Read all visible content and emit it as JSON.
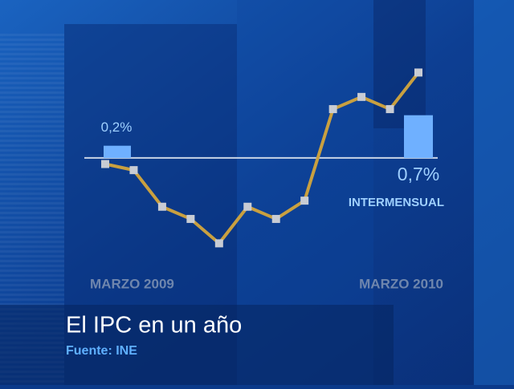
{
  "chart_data": {
    "type": "line",
    "title": "El IPC en un año",
    "source": "Fuente: INE",
    "categories": [
      "MARZO 2009",
      null,
      null,
      null,
      null,
      null,
      null,
      null,
      null,
      null,
      null,
      "MARZO 2010"
    ],
    "ylim": [
      -1.6,
      1.8
    ],
    "series": [
      {
        "type": "line",
        "color": "#c9a040",
        "values": [
          -0.1,
          -0.2,
          -0.8,
          -1.0,
          -1.4,
          -0.8,
          -1.0,
          -0.7,
          0.8,
          1.0,
          0.8,
          1.4
        ]
      },
      {
        "type": "bar",
        "name": "INTERMENSUAL",
        "color": "#6fb0ff",
        "values": [
          0.2,
          null,
          null,
          null,
          null,
          null,
          null,
          null,
          null,
          null,
          null,
          0.7
        ],
        "value_labels": [
          "0,2%",
          null,
          null,
          null,
          null,
          null,
          null,
          null,
          null,
          null,
          null,
          "0,7%"
        ]
      }
    ]
  }
}
